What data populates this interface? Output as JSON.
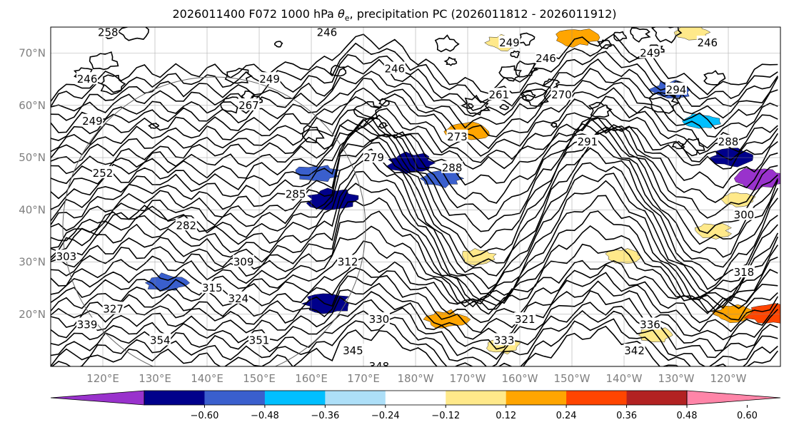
{
  "title": {
    "prefix": "2026011400 F072 1000 hPa ",
    "theta": "θ",
    "sub": "e",
    "suffix": ", precipitation PC (2026011812 - 2026011912)"
  },
  "map": {
    "lon_range_east": [
      110,
      250
    ],
    "lat_range": [
      10,
      75
    ],
    "lat_labels": [
      "20°N",
      "30°N",
      "40°N",
      "50°N",
      "60°N",
      "70°N"
    ],
    "lon_labels": [
      "120°E",
      "130°E",
      "140°E",
      "150°E",
      "160°E",
      "170°E",
      "180°W",
      "170°W",
      "160°W",
      "150°W",
      "140°W",
      "130°W",
      "120°W"
    ]
  },
  "contours": {
    "units": "K",
    "labels": [
      {
        "text": "246",
        "lon": 163,
        "lat": 74
      },
      {
        "text": "249",
        "lon": 198,
        "lat": 72
      },
      {
        "text": "246",
        "lon": 236,
        "lat": 72
      },
      {
        "text": "246",
        "lon": 205,
        "lat": 69
      },
      {
        "text": "249",
        "lon": 225,
        "lat": 70
      },
      {
        "text": "246",
        "lon": 176,
        "lat": 67
      },
      {
        "text": "249",
        "lon": 152,
        "lat": 65
      },
      {
        "text": "258",
        "lon": 121,
        "lat": 74
      },
      {
        "text": "246",
        "lon": 117,
        "lat": 65
      },
      {
        "text": "249",
        "lon": 118,
        "lat": 57
      },
      {
        "text": "252",
        "lon": 120,
        "lat": 47
      },
      {
        "text": "267",
        "lon": 148,
        "lat": 60
      },
      {
        "text": "261",
        "lon": 196,
        "lat": 62
      },
      {
        "text": "270",
        "lon": 208,
        "lat": 62
      },
      {
        "text": "273",
        "lon": 188,
        "lat": 54
      },
      {
        "text": "279",
        "lon": 172,
        "lat": 50
      },
      {
        "text": "288",
        "lon": 187,
        "lat": 48
      },
      {
        "text": "291",
        "lon": 213,
        "lat": 53
      },
      {
        "text": "294",
        "lon": 230,
        "lat": 63
      },
      {
        "text": "288",
        "lon": 240,
        "lat": 53
      },
      {
        "text": "285",
        "lon": 157,
        "lat": 43
      },
      {
        "text": "282",
        "lon": 136,
        "lat": 37
      },
      {
        "text": "309",
        "lon": 147,
        "lat": 30
      },
      {
        "text": "312",
        "lon": 167,
        "lat": 30
      },
      {
        "text": "315",
        "lon": 141,
        "lat": 25
      },
      {
        "text": "324",
        "lon": 146,
        "lat": 23
      },
      {
        "text": "327",
        "lon": 122,
        "lat": 21
      },
      {
        "text": "330",
        "lon": 173,
        "lat": 19
      },
      {
        "text": "321",
        "lon": 201,
        "lat": 19
      },
      {
        "text": "336",
        "lon": 225,
        "lat": 18
      },
      {
        "text": "333",
        "lon": 197,
        "lat": 15
      },
      {
        "text": "339",
        "lon": 117,
        "lat": 18
      },
      {
        "text": "354",
        "lon": 131,
        "lat": 15
      },
      {
        "text": "351",
        "lon": 150,
        "lat": 15
      },
      {
        "text": "345",
        "lon": 168,
        "lat": 13
      },
      {
        "text": "348",
        "lon": 173,
        "lat": 10
      },
      {
        "text": "342",
        "lon": 222,
        "lat": 13
      },
      {
        "text": "318",
        "lon": 243,
        "lat": 28
      },
      {
        "text": "300",
        "lon": 243,
        "lat": 39
      },
      {
        "text": "303",
        "lon": 113,
        "lat": 31
      }
    ]
  },
  "precip_pc": {
    "negative_patches": [
      {
        "lon": 164,
        "lat": 42,
        "level": -0.48
      },
      {
        "lon": 161,
        "lat": 47,
        "level": -0.36
      },
      {
        "lon": 179,
        "lat": 49,
        "level": -0.48
      },
      {
        "lon": 185,
        "lat": 46,
        "level": -0.36
      },
      {
        "lon": 163,
        "lat": 22,
        "level": -0.48
      },
      {
        "lon": 132,
        "lat": 26,
        "level": -0.36
      },
      {
        "lon": 229,
        "lat": 63,
        "level": -0.36
      },
      {
        "lon": 241,
        "lat": 50,
        "level": -0.48
      },
      {
        "lon": 246,
        "lat": 46,
        "level": -0.6
      },
      {
        "lon": 235,
        "lat": 57,
        "level": -0.24
      }
    ],
    "positive_patches": [
      {
        "lon": 197,
        "lat": 72,
        "level": 0.24
      },
      {
        "lon": 211,
        "lat": 73,
        "level": 0.36
      },
      {
        "lon": 233,
        "lat": 74,
        "level": 0.24
      },
      {
        "lon": 190,
        "lat": 55,
        "level": 0.36
      },
      {
        "lon": 186,
        "lat": 19,
        "level": 0.36
      },
      {
        "lon": 192,
        "lat": 31,
        "level": 0.24
      },
      {
        "lon": 241,
        "lat": 20,
        "level": 0.36
      },
      {
        "lon": 248,
        "lat": 20,
        "level": 0.48
      },
      {
        "lon": 237,
        "lat": 36,
        "level": 0.24
      },
      {
        "lon": 242,
        "lat": 42,
        "level": 0.24
      },
      {
        "lon": 220,
        "lat": 31,
        "level": 0.24
      },
      {
        "lon": 197,
        "lat": 14,
        "level": 0.24
      },
      {
        "lon": 226,
        "lat": 16,
        "level": 0.24
      }
    ]
  },
  "colorbar": {
    "ticks": [
      "−0.60",
      "−0.48",
      "−0.36",
      "−0.24",
      "−0.12",
      "0.12",
      "0.24",
      "0.36",
      "0.48",
      "0.60"
    ],
    "colors": [
      "#9932CC",
      "#00008B",
      "#3A5FCD",
      "#00BFFF",
      "#ADDFF8",
      "#FFFFFF",
      "#FFE98A",
      "#FFA500",
      "#FF4500",
      "#B22222",
      "#FF85A8"
    ]
  }
}
